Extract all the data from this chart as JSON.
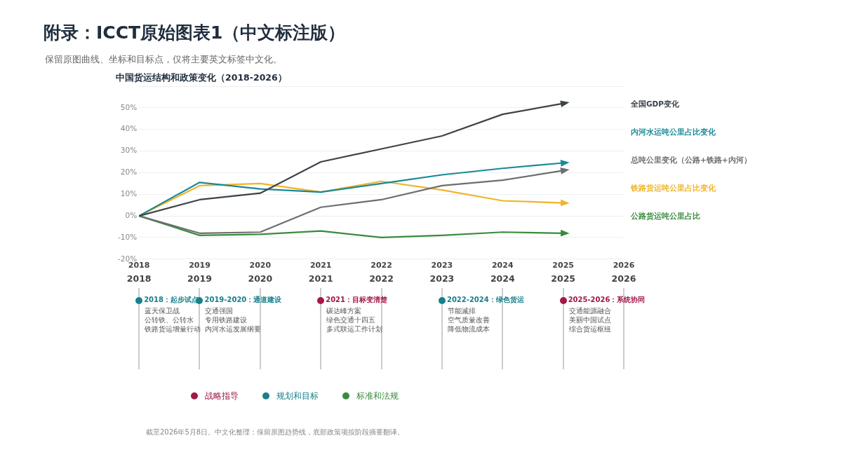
{
  "chart_data": [
    {
      "type": "other",
      "title": "附录：ICCT原始图表1（中文标注版）",
      "subtitle": "保留原图曲线、坐标和目标点，仅将主要英文标签中文化。",
      "annotations": [
        "截至2026年5月8日。中文化整理：保留原图趋势线，底部政策项按阶段摘要翻译。"
      ]
    },
    {
      "type": "line",
      "title": "中国货运结构和政策变化（2018-2026）",
      "x": [
        2018,
        2019,
        2020,
        2021,
        2022,
        2023,
        2024,
        2025
      ],
      "series": [
        {
          "name": "全国GDP变化",
          "color": "#3c4349",
          "values": [
            0,
            7.5,
            10.5,
            25,
            31,
            37,
            47,
            52
          ]
        },
        {
          "name": "内河水运吨公里占比变化",
          "color": "#1a8a96",
          "values": [
            0,
            15.5,
            12.5,
            11,
            15,
            19,
            22,
            24.5
          ]
        },
        {
          "name": "总吨公里变化（公路+铁路+内河）",
          "color": "#6d6e70",
          "values": [
            0,
            -8,
            -7.5,
            4,
            7.5,
            14,
            16.5,
            21
          ]
        },
        {
          "name": "铁路货运吨公里占比变化",
          "color": "#f0b429",
          "values": [
            0,
            14,
            15,
            11,
            16,
            12,
            7,
            6
          ]
        },
        {
          "name": "公路货运吨公里占比",
          "color": "#3a8a3e",
          "values": [
            0,
            -9,
            -8.5,
            -7,
            -10,
            -9,
            -7.5,
            -8
          ]
        }
      ],
      "xlim": [
        2018,
        2026
      ],
      "xticks": [
        2018,
        2019,
        2020,
        2021,
        2022,
        2023,
        2024,
        2025,
        2026
      ],
      "ylim": [
        -20,
        60
      ],
      "yticks": [
        {
          "value": -20,
          "label": "-20%"
        },
        {
          "value": -10,
          "label": "-10%"
        },
        {
          "value": 0,
          "label": "0%"
        },
        {
          "value": 10,
          "label": "10%"
        },
        {
          "value": 20,
          "label": "20%"
        },
        {
          "value": 30,
          "label": "30%"
        },
        {
          "value": 40,
          "label": "40%"
        },
        {
          "value": 50,
          "label": "50%"
        },
        {
          "value": 60,
          "label": null
        }
      ],
      "x2lim": [
        2018,
        2026
      ],
      "x2ticks": [
        2018,
        2019,
        2020,
        2021,
        2022,
        2023,
        2024,
        2025,
        2026
      ],
      "grid": "y",
      "marker": "none"
    },
    {
      "type": "other",
      "annotations": [
        "2018：起步试点",
        "蓝天保卫战",
        "公转铁、公转水",
        "铁路货运增量行动",
        "2019-2020：通道建设",
        "交通强国",
        "专用铁路建设",
        "内河水运发展纲要",
        "2021：目标变清楚",
        "碳达峰方案",
        "绿色交通十四五",
        "多式联运工作计划",
        "2022-2024：绿色货运",
        "节能减排",
        "空气质量改善",
        "降低物流成本",
        "2025-2026：系统协同",
        "交通能源融合",
        "美丽中国试点",
        "综合货运枢纽"
      ],
      "colors": [
        "#17808c",
        "#17808c",
        "#a3174a",
        "#17808c",
        "#a3174a"
      ]
    },
    {
      "type": "other",
      "annotations": [
        "战略指导",
        "规划和目标",
        "标准和法规"
      ],
      "colors": [
        "#a3174a",
        "#17808c",
        "#3a8a3e"
      ]
    }
  ]
}
